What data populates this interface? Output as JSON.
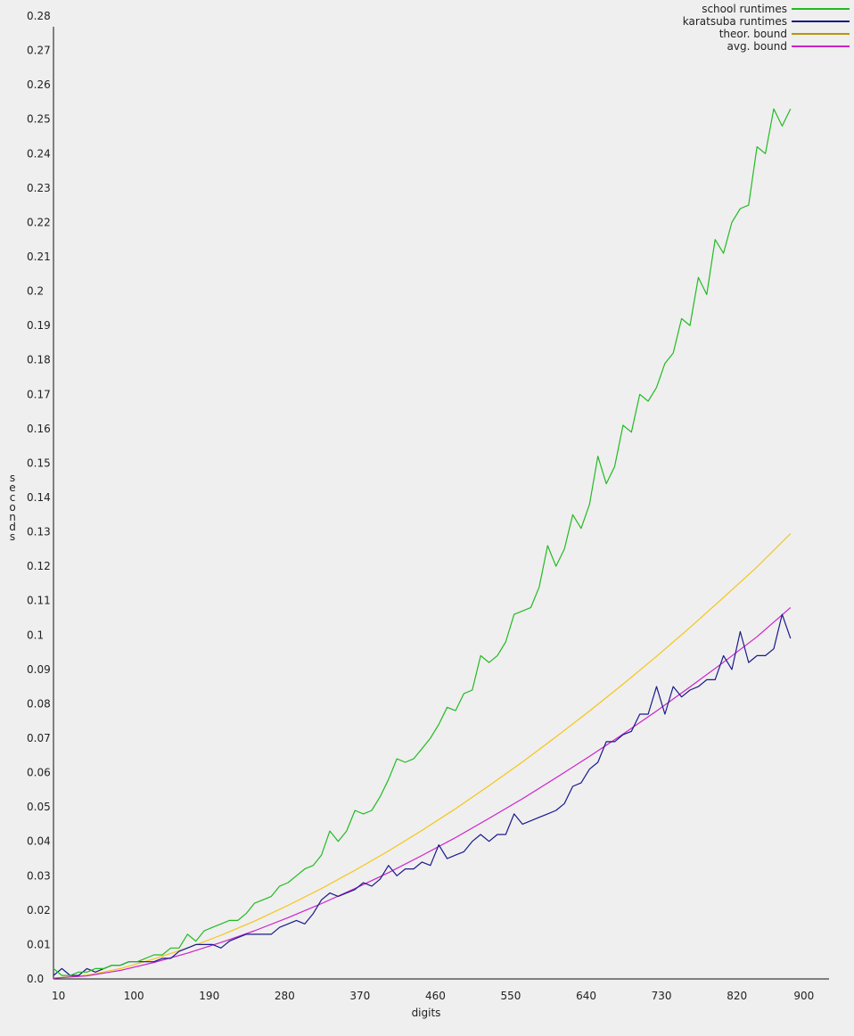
{
  "chart_data": {
    "type": "line",
    "title": "",
    "xlabel": "digits",
    "ylabel": "seconds",
    "xlim": [
      4,
      930
    ],
    "ylim": [
      0,
      0.28
    ],
    "x_ticks": [
      "10",
      "100",
      "190",
      "280",
      "370",
      "460",
      "550",
      "640",
      "730",
      "820",
      "900"
    ],
    "x_tick_values": [
      10,
      100,
      190,
      280,
      370,
      460,
      550,
      640,
      730,
      820,
      900
    ],
    "y_ticks": [
      "0.0",
      "0.01",
      "0.02",
      "0.03",
      "0.04",
      "0.05",
      "0.06",
      "0.07",
      "0.08",
      "0.09",
      "0.1",
      "0.11",
      "0.12",
      "0.13",
      "0.14",
      "0.15",
      "0.16",
      "0.17",
      "0.18",
      "0.19",
      "0.2",
      "0.21",
      "0.22",
      "0.23",
      "0.24",
      "0.25",
      "0.26",
      "0.27",
      "0.28"
    ],
    "y_tick_values": [
      0,
      0.01,
      0.02,
      0.03,
      0.04,
      0.05,
      0.06,
      0.07,
      0.08,
      0.09,
      0.1,
      0.11,
      0.12,
      0.13,
      0.14,
      0.15,
      0.16,
      0.17,
      0.18,
      0.19,
      0.2,
      0.21,
      0.22,
      0.23,
      0.24,
      0.25,
      0.26,
      0.27,
      0.28
    ],
    "grid": false,
    "legend_position": "top-right",
    "series": [
      {
        "name": "school runtimes",
        "color": "#22bb22",
        "x": [
          4,
          14,
          24,
          34,
          44,
          54,
          64,
          74,
          84,
          94,
          104,
          114,
          124,
          134,
          144,
          154,
          164,
          174,
          184,
          194,
          204,
          214,
          224,
          234,
          244,
          254,
          264,
          274,
          284,
          294,
          304,
          314,
          324,
          334,
          344,
          354,
          364,
          374,
          384,
          394,
          404,
          414,
          424,
          434,
          444,
          454,
          464,
          474,
          484,
          494,
          504,
          514,
          524,
          534,
          544,
          554,
          564,
          574,
          584,
          594,
          604,
          614,
          624,
          634,
          644,
          654,
          664,
          674,
          684,
          694,
          704,
          714,
          724,
          734,
          744,
          754,
          764,
          774,
          784,
          794,
          804,
          814,
          824,
          834,
          844,
          854,
          864,
          874,
          884
        ],
        "y": [
          0.003,
          0.001,
          0.001,
          0.002,
          0.002,
          0.003,
          0.003,
          0.004,
          0.004,
          0.005,
          0.005,
          0.006,
          0.007,
          0.007,
          0.009,
          0.009,
          0.013,
          0.011,
          0.014,
          0.015,
          0.016,
          0.017,
          0.017,
          0.019,
          0.022,
          0.023,
          0.024,
          0.027,
          0.028,
          0.03,
          0.032,
          0.033,
          0.036,
          0.043,
          0.04,
          0.043,
          0.049,
          0.048,
          0.049,
          0.053,
          0.058,
          0.064,
          0.063,
          0.064,
          0.067,
          0.07,
          0.074,
          0.079,
          0.078,
          0.083,
          0.084,
          0.094,
          0.092,
          0.094,
          0.098,
          0.106,
          0.107,
          0.108,
          0.114,
          0.126,
          0.12,
          0.125,
          0.135,
          0.131,
          0.138,
          0.152,
          0.144,
          0.149,
          0.161,
          0.159,
          0.17,
          0.168,
          0.172,
          0.179,
          0.182,
          0.192,
          0.19,
          0.204,
          0.199,
          0.215,
          0.211,
          0.22,
          0.224,
          0.225,
          0.242,
          0.24,
          0.253,
          0.248,
          0.253
        ]
      },
      {
        "name": "karatsuba runtimes",
        "color": "#1a1a8c",
        "x": [
          4,
          14,
          24,
          34,
          44,
          54,
          64,
          74,
          84,
          94,
          104,
          114,
          124,
          134,
          144,
          154,
          164,
          174,
          184,
          194,
          204,
          214,
          224,
          234,
          244,
          254,
          264,
          274,
          284,
          294,
          304,
          314,
          324,
          334,
          344,
          354,
          364,
          374,
          384,
          394,
          404,
          414,
          424,
          434,
          444,
          454,
          464,
          474,
          484,
          494,
          504,
          514,
          524,
          534,
          544,
          554,
          564,
          574,
          584,
          594,
          604,
          614,
          624,
          634,
          644,
          654,
          664,
          674,
          684,
          694,
          704,
          714,
          724,
          734,
          744,
          754,
          764,
          774,
          784,
          794,
          804,
          814,
          824,
          834,
          844,
          854,
          864,
          874,
          884
        ],
        "y": [
          0.001,
          0.003,
          0.001,
          0.001,
          0.003,
          0.002,
          0.003,
          0.004,
          0.004,
          0.005,
          0.005,
          0.005,
          0.005,
          0.006,
          0.006,
          0.008,
          0.009,
          0.01,
          0.01,
          0.01,
          0.009,
          0.011,
          0.012,
          0.013,
          0.013,
          0.013,
          0.013,
          0.015,
          0.016,
          0.017,
          0.016,
          0.019,
          0.023,
          0.025,
          0.024,
          0.025,
          0.026,
          0.028,
          0.027,
          0.029,
          0.033,
          0.03,
          0.032,
          0.032,
          0.034,
          0.033,
          0.039,
          0.035,
          0.036,
          0.037,
          0.04,
          0.042,
          0.04,
          0.042,
          0.042,
          0.048,
          0.045,
          0.046,
          0.047,
          0.048,
          0.049,
          0.051,
          0.056,
          0.057,
          0.061,
          0.063,
          0.069,
          0.069,
          0.071,
          0.072,
          0.077,
          0.077,
          0.085,
          0.077,
          0.085,
          0.082,
          0.084,
          0.085,
          0.087,
          0.087,
          0.094,
          0.09,
          0.101,
          0.092,
          0.094,
          0.094,
          0.096,
          0.106,
          0.099
        ]
      },
      {
        "name": "theor. bound",
        "color": "#b8960a",
        "line_color": "#f5c518",
        "formula": "0.13*(x/884)^1.585",
        "x": [
          4,
          44,
          84,
          124,
          164,
          204,
          244,
          284,
          324,
          364,
          404,
          444,
          484,
          524,
          564,
          604,
          644,
          684,
          724,
          764,
          804,
          844,
          884
        ],
        "y": [
          0.0002,
          0.0011,
          0.003,
          0.0058,
          0.009,
          0.0127,
          0.0168,
          0.0214,
          0.0263,
          0.0316,
          0.0372,
          0.0432,
          0.0495,
          0.0562,
          0.0631,
          0.0704,
          0.0779,
          0.0857,
          0.0938,
          0.1022,
          0.1109,
          0.1198,
          0.1295
        ]
      },
      {
        "name": "avg. bound",
        "color": "#cc22cc",
        "formula": "0.108*(x/884)^1.585",
        "x": [
          4,
          44,
          84,
          124,
          164,
          204,
          244,
          284,
          324,
          364,
          404,
          444,
          484,
          524,
          564,
          604,
          644,
          684,
          724,
          764,
          804,
          844,
          884
        ],
        "y": [
          0.0002,
          0.0009,
          0.0025,
          0.0048,
          0.0075,
          0.0106,
          0.014,
          0.0178,
          0.0219,
          0.0263,
          0.0309,
          0.0359,
          0.0411,
          0.0467,
          0.0524,
          0.0585,
          0.0647,
          0.0712,
          0.0779,
          0.0849,
          0.0921,
          0.0995,
          0.108
        ]
      }
    ]
  }
}
